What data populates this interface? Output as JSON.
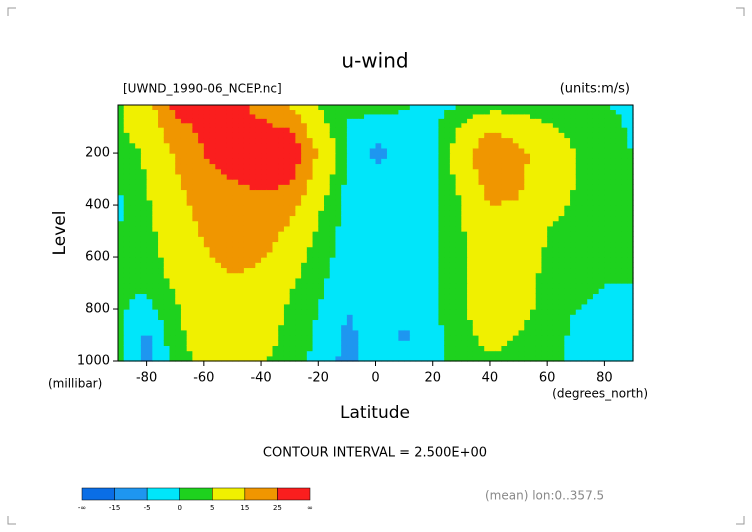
{
  "chart_data": {
    "type": "contour",
    "title": "u-wind",
    "subtitle": "[UWND_1990-06_NCEP.nc]",
    "units": "(units:m/s)",
    "x_label": "Latitude",
    "x_unit": "(degrees_north)",
    "y_label": "Level",
    "y_unit": "(millibar)",
    "footer": "CONTOUR INTERVAL = 2.500E+00",
    "note": "(mean) lon:0..357.5",
    "xlim": [
      -90,
      90
    ],
    "xticks": [
      -80,
      -60,
      -40,
      -20,
      0,
      20,
      40,
      60,
      80
    ],
    "ylim": [
      1000,
      15
    ],
    "yticks": [
      200,
      400,
      600,
      800,
      1000
    ],
    "x": [
      -90,
      -80,
      -70,
      -60,
      -50,
      -40,
      -30,
      -20,
      -10,
      0,
      10,
      20,
      30,
      40,
      50,
      60,
      70,
      80,
      90
    ],
    "y": [
      1000,
      900,
      800,
      700,
      600,
      500,
      400,
      300,
      200,
      100,
      15
    ],
    "z": [
      [
        1,
        -6,
        2,
        7,
        9,
        6,
        2,
        -1,
        -7,
        -3,
        -3,
        -2,
        2,
        4,
        3,
        1,
        -1,
        -2,
        -1
      ],
      [
        1,
        -6,
        3,
        9,
        10,
        8,
        3,
        -1,
        -6,
        -3,
        -6,
        -2,
        3,
        7,
        5,
        2,
        -1,
        -2,
        -1
      ],
      [
        1,
        -2,
        4,
        10,
        12,
        10,
        4,
        0,
        -5,
        -3,
        -2,
        -1,
        4,
        9,
        7,
        3,
        0,
        -1,
        -1
      ],
      [
        1,
        1,
        6,
        12,
        14,
        12,
        6,
        1,
        -3,
        -3,
        -2,
        -1,
        4,
        10,
        8,
        3,
        1,
        0,
        0
      ],
      [
        1,
        2,
        8,
        14,
        17,
        16,
        9,
        2,
        -2,
        -3,
        -2,
        -1,
        4,
        11,
        10,
        4,
        2,
        1,
        0
      ],
      [
        0,
        3,
        10,
        16,
        19,
        20,
        13,
        4,
        -2,
        -3,
        -2,
        -1,
        4,
        13,
        12,
        5,
        3,
        2,
        1
      ],
      [
        -1,
        4,
        12,
        18,
        22,
        23,
        19,
        6,
        -1,
        -3,
        -2,
        -1,
        5,
        15,
        14,
        7,
        4,
        2,
        1
      ],
      [
        0,
        5,
        14,
        21,
        25,
        27,
        27,
        10,
        -1,
        -4,
        -3,
        -1,
        7,
        20,
        17,
        8,
        5,
        3,
        0
      ],
      [
        2,
        6,
        16,
        25,
        29,
        31,
        34,
        14,
        0,
        -6,
        -4,
        -1,
        9,
        24,
        18,
        9,
        5,
        3,
        0
      ],
      [
        4,
        8,
        22,
        27,
        28,
        27,
        24,
        8,
        -1,
        -4,
        -3,
        -1,
        6,
        13,
        10,
        6,
        3,
        2,
        -1
      ],
      [
        3,
        10,
        28,
        30,
        28,
        22,
        14,
        5,
        2,
        3,
        1,
        -2,
        0,
        2,
        2,
        1,
        1,
        0,
        -1
      ]
    ],
    "colorbar": {
      "levels": [
        -15,
        -5,
        0,
        5,
        15,
        25
      ],
      "colors": [
        "#0a6ee6",
        "#1e96f0",
        "#00e6fa",
        "#1ed21e",
        "#f0f000",
        "#f09600",
        "#fa1e1e"
      ],
      "end_labels": [
        "-∞",
        "∞"
      ]
    }
  }
}
